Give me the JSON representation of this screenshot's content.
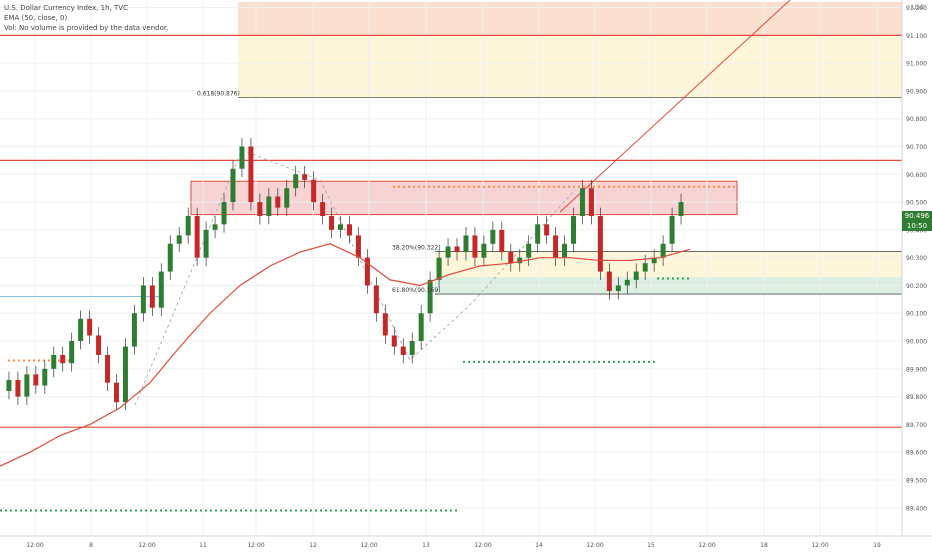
{
  "legend": {
    "title": "U.S. Dollar Currency Index, 1h, TVC",
    "ema": "EMA (50, close, 0)",
    "vol": "Vol: No volume is provided by the data vendor."
  },
  "currency_label": "USD",
  "price_badges": {
    "last": "90.496",
    "countdown": "10:50"
  },
  "fib_labels": [
    {
      "text": "0.618(90.876)",
      "price": 90.876
    },
    {
      "text": "38.20%(90.322)",
      "price": 90.322
    },
    {
      "text": "61.80%(90.169)",
      "price": 90.169
    }
  ],
  "chart_data": {
    "type": "candlestick",
    "symbol": "U.S. Dollar Currency Index",
    "interval": "1h",
    "source": "TVC",
    "ylim": [
      89.32,
      91.22
    ],
    "y_ticks": [
      "91.200",
      "91.100",
      "91.000",
      "90.900",
      "90.800",
      "90.700",
      "90.600",
      "90.500",
      "90.400",
      "90.300",
      "90.200",
      "90.100",
      "90.000",
      "89.900",
      "89.800",
      "89.700",
      "89.600",
      "89.500",
      "89.400"
    ],
    "x_ticks": [
      "12:00",
      "8",
      "12:00",
      "11",
      "12:00",
      "12",
      "12:00",
      "13",
      "12:00",
      "14",
      "12:00",
      "15",
      "12:00",
      "18",
      "12:00",
      "19"
    ],
    "last_price": 90.496,
    "horizontal_lines": [
      {
        "price": 91.1,
        "color": "#e24a3b"
      },
      {
        "price": 90.65,
        "color": "#e24a3b"
      },
      {
        "price": 89.69,
        "color": "#e24a3b"
      },
      {
        "price": 90.876,
        "color": "#555555"
      },
      {
        "price": 90.322,
        "color": "#555555"
      },
      {
        "price": 90.169,
        "color": "#555555"
      },
      {
        "price": 90.16,
        "color": "#7ab4e8"
      }
    ],
    "zones": [
      {
        "from": 91.1,
        "to": 91.22,
        "color": "#fbe0cf"
      },
      {
        "from": 90.876,
        "to": 91.1,
        "color": "#fdf6d9"
      },
      {
        "from": 90.23,
        "to": 90.322,
        "color": "#fdf6d9"
      },
      {
        "from": 90.169,
        "to": 90.23,
        "color": "#dcefe0"
      },
      {
        "from": 90.455,
        "to": 90.575,
        "color": "#f8d3d3"
      }
    ],
    "ema_50": [
      89.55,
      89.6,
      89.66,
      89.7,
      89.76,
      89.85,
      89.98,
      90.1,
      90.2,
      90.27,
      90.32,
      90.35,
      90.3,
      90.22,
      90.2,
      90.24,
      90.27,
      90.28,
      90.3,
      90.3,
      90.29,
      90.29,
      90.3,
      90.33
    ],
    "candles": []
  }
}
